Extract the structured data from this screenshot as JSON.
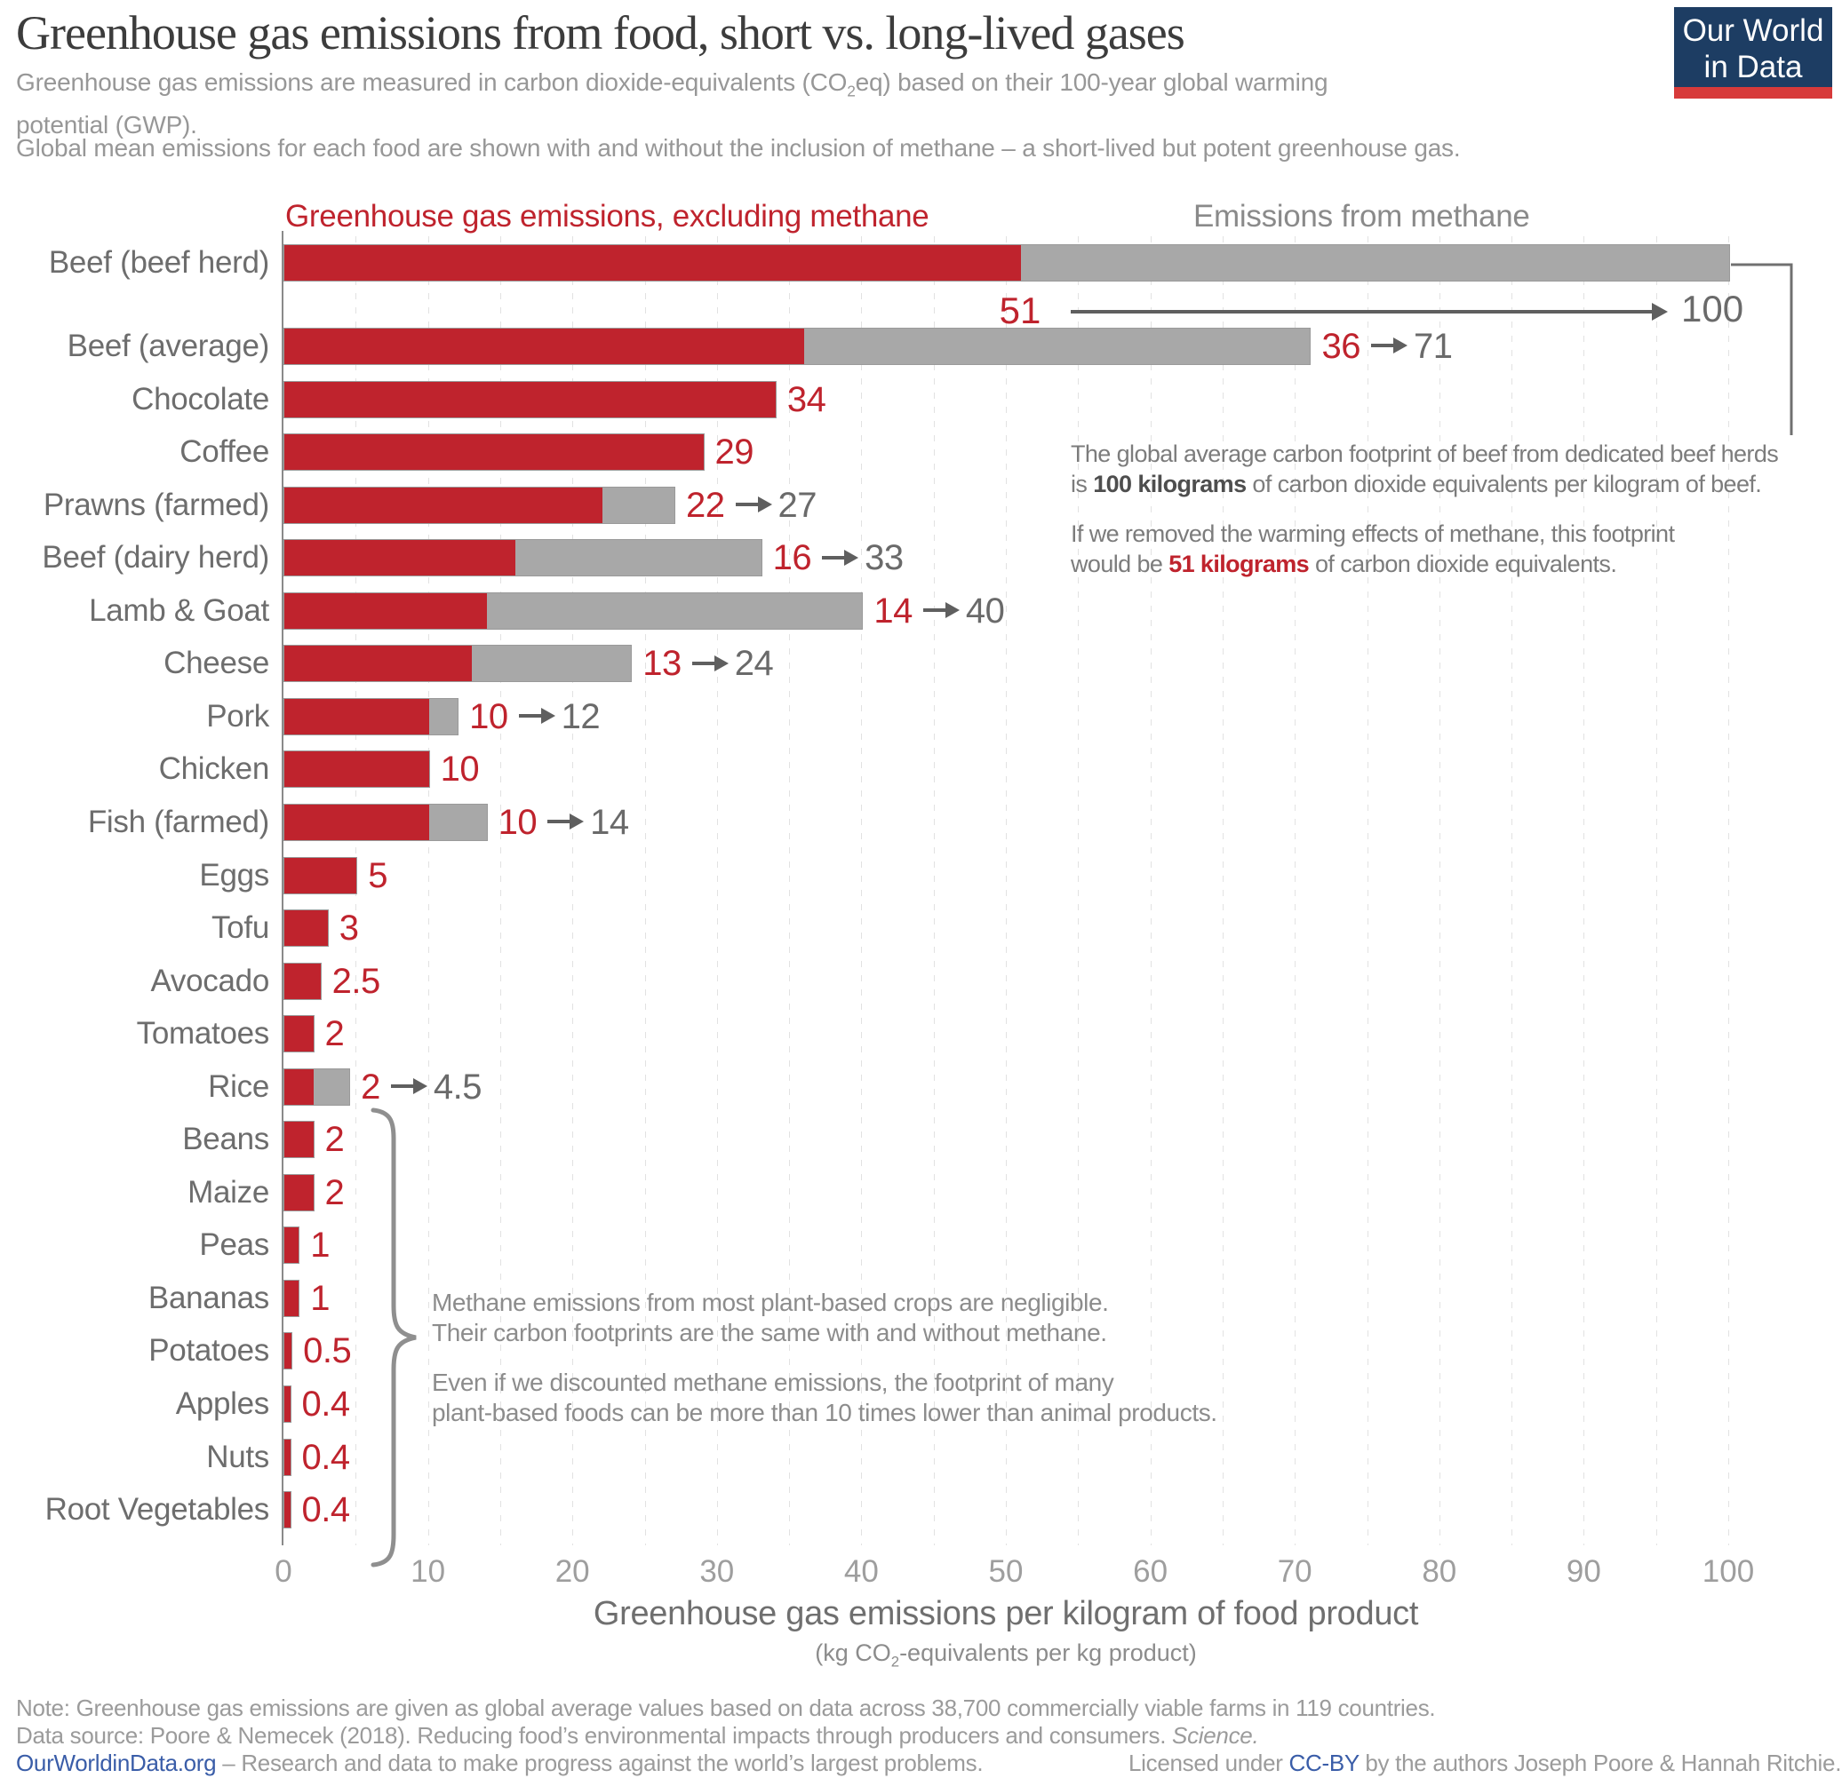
{
  "header": {
    "title": "Greenhouse gas emissions from food, short vs. long-lived gases",
    "subtitle1_pre": "Greenhouse gas emissions are measured in carbon dioxide-equivalents (CO",
    "subtitle1_sub": "2",
    "subtitle1_mid": "eq) based on their 100-year global warming",
    "subtitle1_line2": "potential (GWP).",
    "subtitle2": "Global mean emissions for each food are shown with and without the inclusion of methane – a short-lived but potent greenhouse gas.",
    "logo_line1": "Our World",
    "logo_line2": "in Data"
  },
  "legend": {
    "excluding_methane": "Greenhouse gas emissions, excluding methane",
    "methane": "Emissions from methane"
  },
  "chart_data": {
    "type": "bar",
    "orientation": "horizontal",
    "title": "Greenhouse gas emissions from food, short vs. long-lived gases",
    "xlabel": "Greenhouse gas emissions per kilogram of food product",
    "xlabel_unit": "(kg CO2-equivalents per kg product)",
    "xlim": [
      0,
      100
    ],
    "x_ticks": [
      0,
      10,
      20,
      30,
      40,
      50,
      60,
      70,
      80,
      90,
      100
    ],
    "grid": "dashed vertical every 5 units",
    "series_names": [
      "Greenhouse gas emissions, excluding methane",
      "Emissions from methane"
    ],
    "colors": {
      "excluding_methane": "#bf232d",
      "methane": "#a8a8a8"
    },
    "rows": [
      {
        "label": "Beef (beef herd)",
        "excl_methane": 51,
        "with_methane": 100
      },
      {
        "label": "Beef (average)",
        "excl_methane": 36,
        "with_methane": 71
      },
      {
        "label": "Chocolate",
        "excl_methane": 34,
        "with_methane": null
      },
      {
        "label": "Coffee",
        "excl_methane": 29,
        "with_methane": null
      },
      {
        "label": "Prawns (farmed)",
        "excl_methane": 22,
        "with_methane": 27
      },
      {
        "label": "Beef (dairy herd)",
        "excl_methane": 16,
        "with_methane": 33
      },
      {
        "label": "Lamb & Goat",
        "excl_methane": 14,
        "with_methane": 40
      },
      {
        "label": "Cheese",
        "excl_methane": 13,
        "with_methane": 24
      },
      {
        "label": "Pork",
        "excl_methane": 10,
        "with_methane": 12
      },
      {
        "label": "Chicken",
        "excl_methane": 10,
        "with_methane": null
      },
      {
        "label": "Fish (farmed)",
        "excl_methane": 10,
        "with_methane": 14
      },
      {
        "label": "Eggs",
        "excl_methane": 5,
        "with_methane": null
      },
      {
        "label": "Tofu",
        "excl_methane": 3,
        "with_methane": null
      },
      {
        "label": "Avocado",
        "excl_methane": 2.5,
        "with_methane": null
      },
      {
        "label": "Tomatoes",
        "excl_methane": 2,
        "with_methane": null
      },
      {
        "label": "Rice",
        "excl_methane": 2,
        "with_methane": 4.5
      },
      {
        "label": "Beans",
        "excl_methane": 2,
        "with_methane": null
      },
      {
        "label": "Maize",
        "excl_methane": 2,
        "with_methane": null
      },
      {
        "label": "Peas",
        "excl_methane": 1,
        "with_methane": null
      },
      {
        "label": "Bananas",
        "excl_methane": 1,
        "with_methane": null
      },
      {
        "label": "Potatoes",
        "excl_methane": 0.5,
        "with_methane": null
      },
      {
        "label": "Apples",
        "excl_methane": 0.4,
        "with_methane": null
      },
      {
        "label": "Nuts",
        "excl_methane": 0.4,
        "with_methane": null
      },
      {
        "label": "Root Vegetables",
        "excl_methane": 0.4,
        "with_methane": null
      }
    ]
  },
  "annotations": {
    "beef": {
      "l1": "The global average carbon footprint of beef from dedicated beef herds",
      "l2a": "is ",
      "l2b": "100 kilograms",
      "l2c": " of carbon dioxide equivalents per kilogram of beef.",
      "l3": "If we removed the warming effects of methane, this footprint",
      "l4a": "would be ",
      "l4b": "51 kilograms",
      "l4c": " of carbon dioxide equivalents."
    },
    "plants": {
      "l1": "Methane emissions from most plant-based crops are negligible.",
      "l2": "Their carbon footprints are the same with and without methane.",
      "l3": "Even if we discounted methane emissions, the footprint of many",
      "l4": "plant-based foods can be more than 10 times lower than animal products."
    }
  },
  "axis": {
    "title": "Greenhouse gas emissions per kilogram of food product",
    "sub_pre": "(kg CO",
    "sub_sub": "2",
    "sub_post": "-equivalents per kg product)"
  },
  "footer": {
    "note": "Note: Greenhouse gas emissions are given as global average values based on data across 38,700 commercially viable farms in 119 countries.",
    "source_pre": "Data source: Poore & Nemecek (2018). Reducing food’s environmental impacts through producers and consumers. ",
    "source_italic": "Science.",
    "owid_link": "OurWorldinData.org",
    "owid_rest": " – Research and data to make progress against the world’s largest problems.",
    "license_pre": "Licensed under ",
    "license_link": "CC-BY",
    "license_post": " by the authors Joseph Poore & Hannah Ritchie."
  }
}
